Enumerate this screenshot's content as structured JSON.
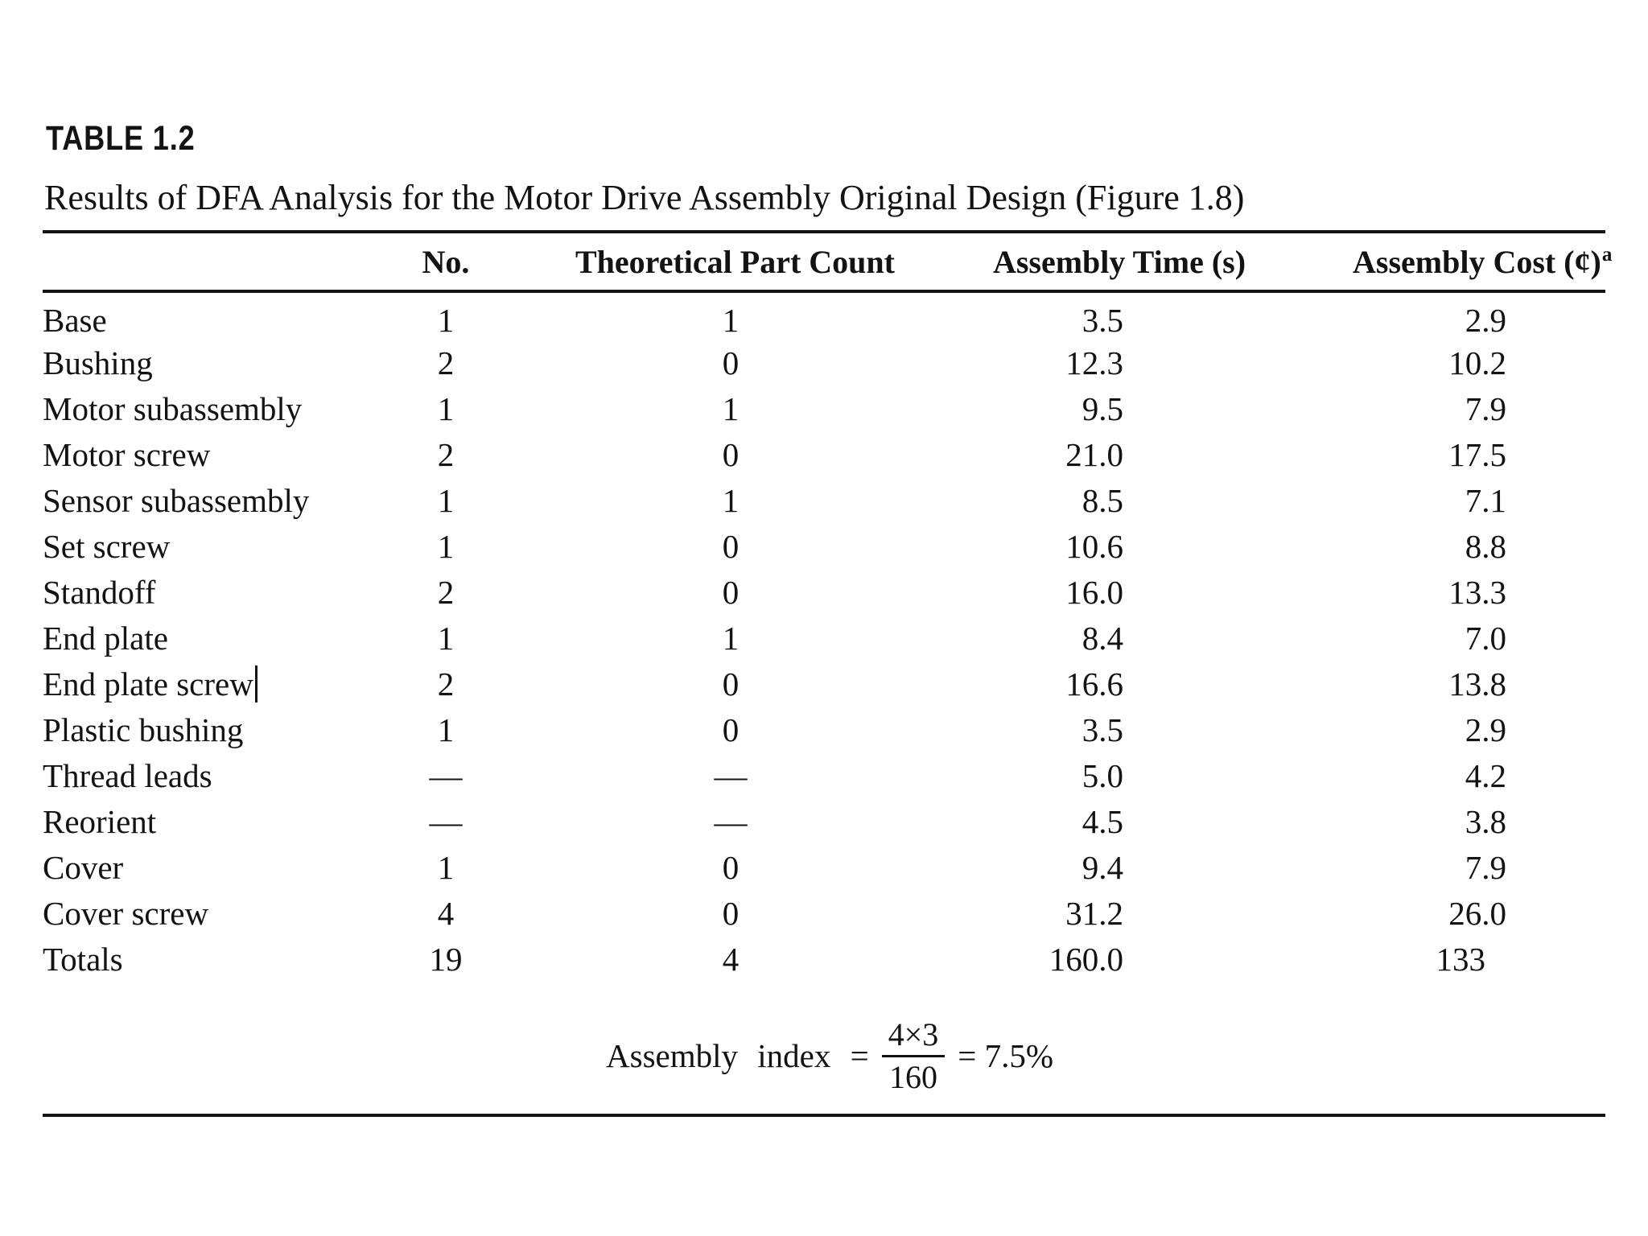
{
  "colors": {
    "ink": "#131313",
    "paper": "#ffffff"
  },
  "header": {
    "table_label": "TABLE 1.2",
    "table_title": "Results of DFA Analysis for the Motor Drive Assembly Original Design (Figure 1.8)"
  },
  "table": {
    "header": {
      "part": "",
      "no": "No.",
      "theoretical": "Theoretical Part Count",
      "time": "Assembly Time (s)",
      "cost": "Assembly Cost (¢)",
      "cost_footnote": "a"
    },
    "rows": [
      {
        "part": "Base",
        "no": "1",
        "theoretical": "1",
        "time": "3.5",
        "cost": "2.9"
      },
      {
        "part": "Bushing",
        "no": "2",
        "theoretical": "0",
        "time": "12.3",
        "cost": "10.2"
      },
      {
        "part": "Motor subassembly",
        "no": "1",
        "theoretical": "1",
        "time": "9.5",
        "cost": "7.9"
      },
      {
        "part": "Motor screw",
        "no": "2",
        "theoretical": "0",
        "time": "21.0",
        "cost": "17.5"
      },
      {
        "part": "Sensor subassembly",
        "no": "1",
        "theoretical": "1",
        "time": "8.5",
        "cost": "7.1"
      },
      {
        "part": "Set screw",
        "no": "1",
        "theoretical": "0",
        "time": "10.6",
        "cost": "8.8"
      },
      {
        "part": "Standoff",
        "no": "2",
        "theoretical": "0",
        "time": "16.0",
        "cost": "13.3"
      },
      {
        "part": "End plate",
        "no": "1",
        "theoretical": "1",
        "time": "8.4",
        "cost": "7.0"
      },
      {
        "part": "End plate screw",
        "no": "2",
        "theoretical": "0",
        "time": "16.6",
        "cost": "13.8",
        "text_cursor": true
      },
      {
        "part": "Plastic bushing",
        "no": "1",
        "theoretical": "0",
        "time": "3.5",
        "cost": "2.9"
      },
      {
        "part": "Thread leads",
        "no": "—",
        "theoretical": "—",
        "time": "5.0",
        "cost": "4.2"
      },
      {
        "part": "Reorient",
        "no": "—",
        "theoretical": "—",
        "time": "4.5",
        "cost": "3.8"
      },
      {
        "part": "Cover",
        "no": "1",
        "theoretical": "0",
        "time": "9.4",
        "cost": "7.9"
      },
      {
        "part": "Cover screw",
        "no": "4",
        "theoretical": "0",
        "time": "31.2",
        "cost": "26.0"
      },
      {
        "part": "Totals",
        "no": "19",
        "theoretical": "4",
        "time": "160.0",
        "cost": "133"
      }
    ]
  },
  "formula": {
    "label": "Assembly index =",
    "numerator": "4×3",
    "denominator": "160",
    "result": "= 7.5%"
  }
}
